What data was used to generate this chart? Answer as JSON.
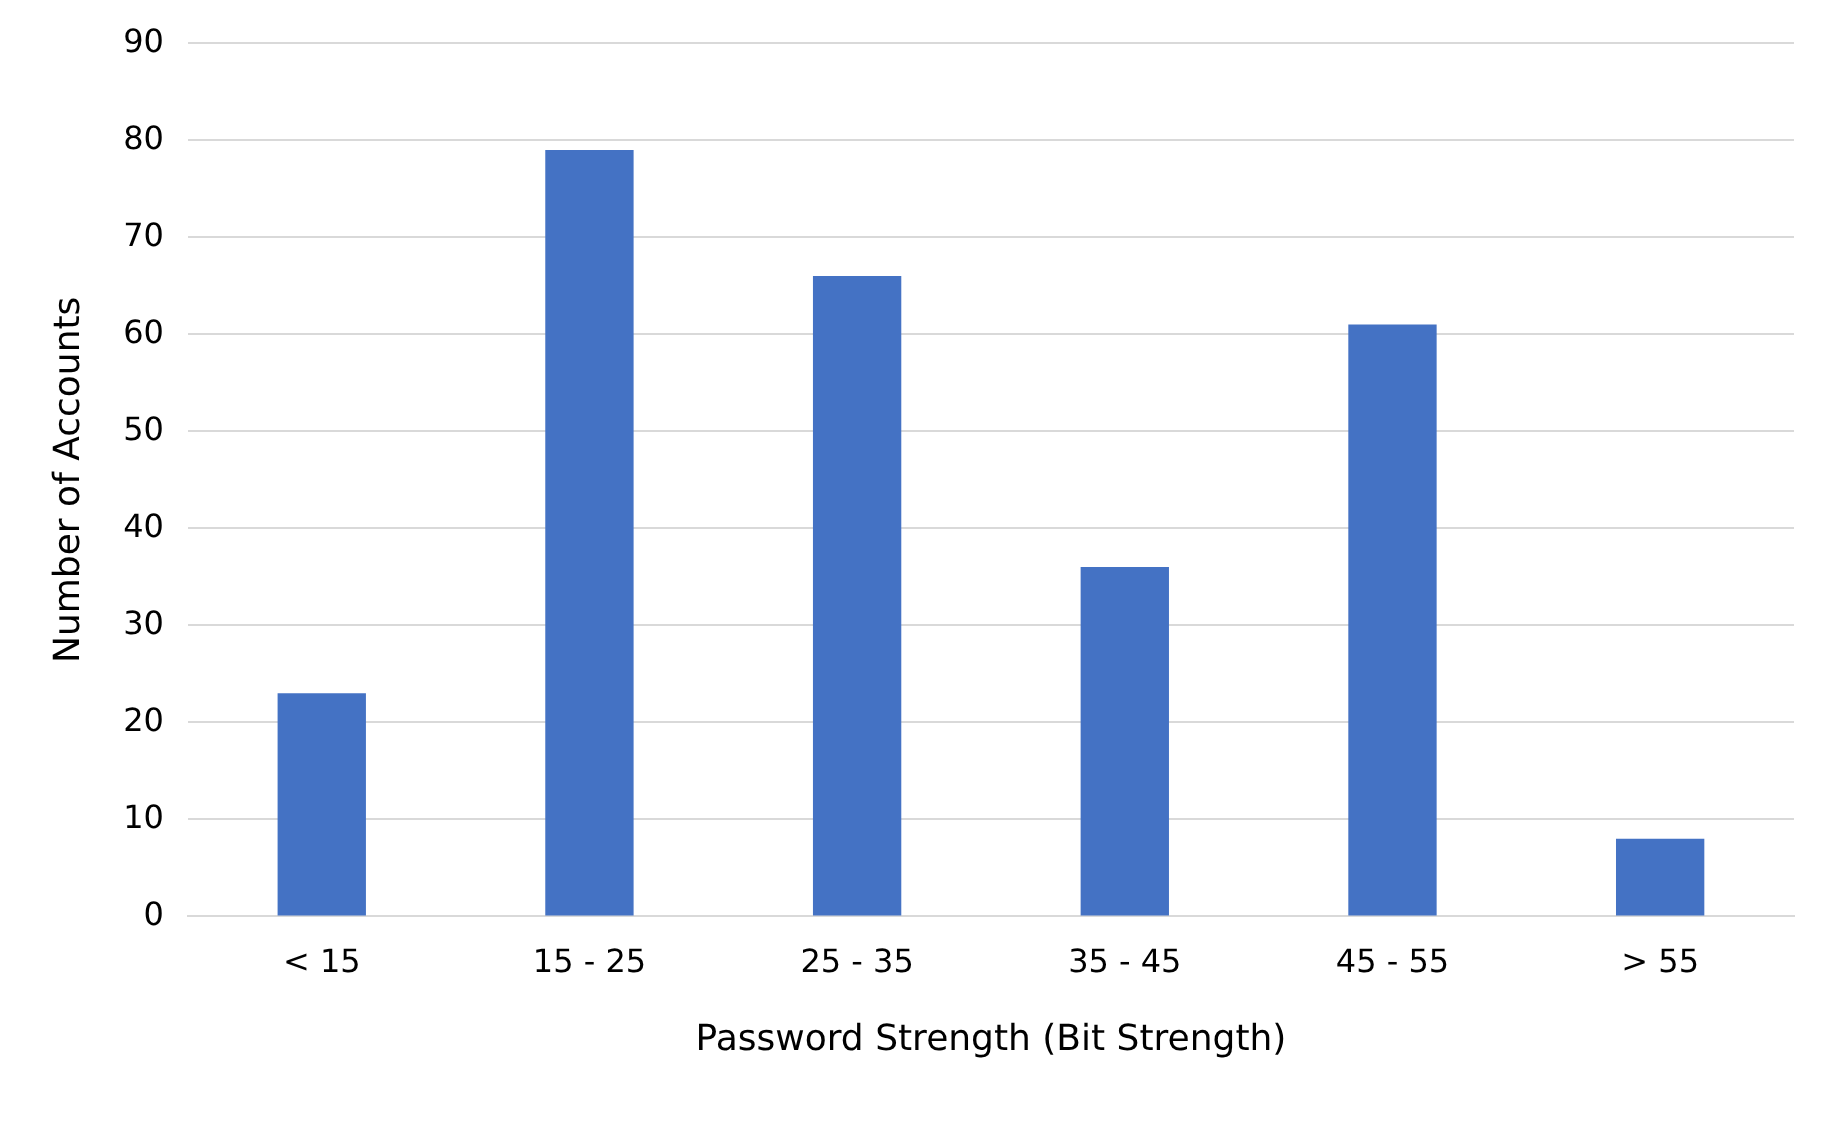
{
  "chart_data": {
    "type": "bar",
    "xlabel": "Password Strength (Bit Strength)",
    "ylabel": "Number of Accounts",
    "categories": [
      "< 15",
      "15 - 25",
      "25 - 35",
      "35 - 45",
      "45 - 55",
      "> 55"
    ],
    "values": [
      23,
      79,
      66,
      36,
      61,
      8
    ],
    "color": "#4472c4",
    "ylim": [
      0,
      90
    ],
    "yticks": [
      0,
      10,
      20,
      30,
      40,
      50,
      60,
      70,
      80,
      90
    ],
    "grid": "y",
    "legend": false
  }
}
